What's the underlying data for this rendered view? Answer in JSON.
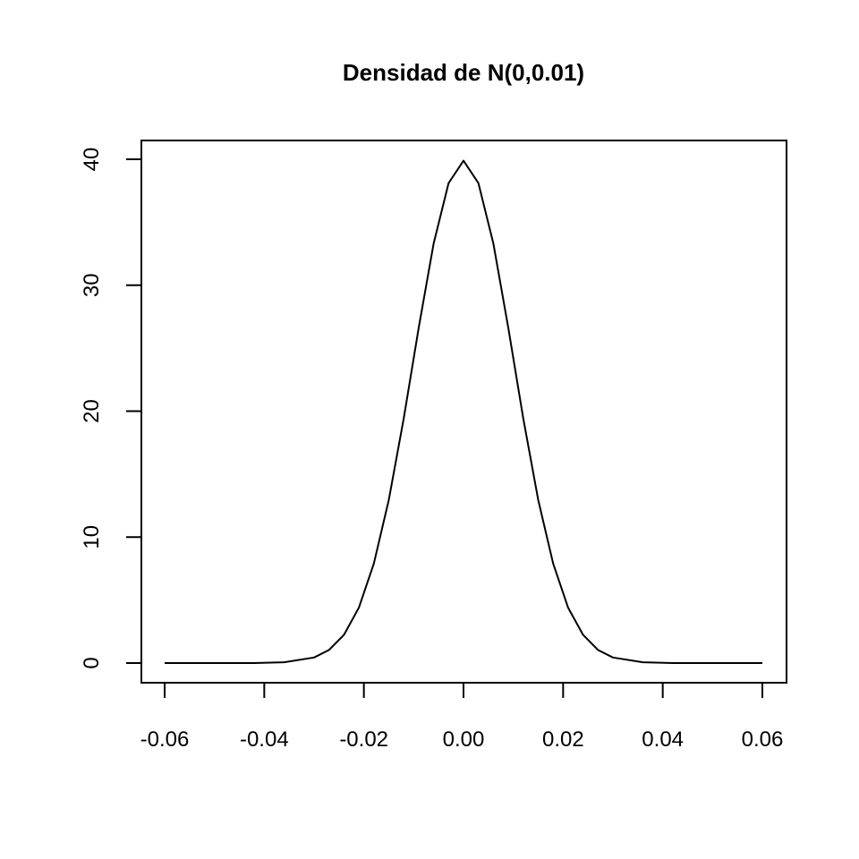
{
  "chart_data": {
    "type": "line",
    "title": "Densidad de N(0,0.01)",
    "xlabel": "",
    "ylabel": "",
    "x_ticks": [
      -0.06,
      -0.04,
      -0.02,
      0.0,
      0.02,
      0.04,
      0.06
    ],
    "x_tick_labels": [
      "-0.06",
      "-0.04",
      "-0.02",
      "0.00",
      "0.02",
      "0.04",
      "0.06"
    ],
    "y_ticks": [
      0,
      10,
      20,
      30,
      40
    ],
    "y_tick_labels": [
      "0",
      "10",
      "20",
      "30",
      "40"
    ],
    "xlim": [
      -0.06,
      0.06
    ],
    "ylim": [
      0,
      40
    ],
    "grid": false,
    "legend": "none",
    "line_color": "#000000",
    "series": [
      {
        "x": [
          -0.06,
          -0.054,
          -0.048,
          -0.042,
          -0.036,
          -0.03,
          -0.027,
          -0.024,
          -0.021,
          -0.018,
          -0.015,
          -0.012,
          -0.009,
          -0.006,
          -0.003,
          0.0,
          0.003,
          0.006,
          0.009,
          0.012,
          0.015,
          0.018,
          0.021,
          0.024,
          0.027,
          0.03,
          0.036,
          0.042,
          0.048,
          0.054,
          0.06
        ],
        "y": [
          0.0,
          0.0,
          0.0,
          0.0,
          0.06,
          0.44,
          1.04,
          2.24,
          4.4,
          7.9,
          12.95,
          19.42,
          26.6,
          33.3,
          38.1,
          39.89,
          38.1,
          33.3,
          26.6,
          19.42,
          12.95,
          7.9,
          4.4,
          2.24,
          1.04,
          0.44,
          0.06,
          0.0,
          0.0,
          0.0,
          0.0
        ]
      }
    ]
  }
}
